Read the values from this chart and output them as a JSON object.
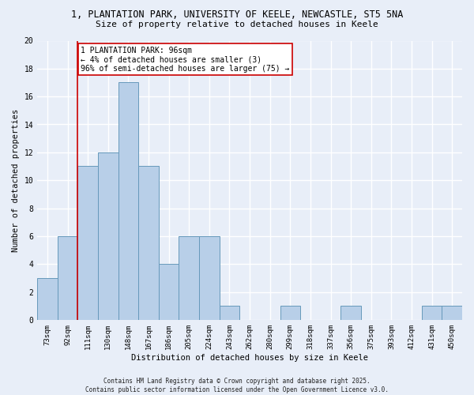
{
  "title1": "1, PLANTATION PARK, UNIVERSITY OF KEELE, NEWCASTLE, ST5 5NA",
  "title2": "Size of property relative to detached houses in Keele",
  "xlabel": "Distribution of detached houses by size in Keele",
  "ylabel": "Number of detached properties",
  "categories": [
    "73sqm",
    "92sqm",
    "111sqm",
    "130sqm",
    "148sqm",
    "167sqm",
    "186sqm",
    "205sqm",
    "224sqm",
    "243sqm",
    "262sqm",
    "280sqm",
    "299sqm",
    "318sqm",
    "337sqm",
    "356sqm",
    "375sqm",
    "393sqm",
    "412sqm",
    "431sqm",
    "450sqm"
  ],
  "values": [
    3,
    6,
    11,
    12,
    17,
    11,
    4,
    6,
    6,
    1,
    0,
    0,
    1,
    0,
    0,
    1,
    0,
    0,
    0,
    1,
    1
  ],
  "bar_color": "#b8cfe8",
  "bar_edge_color": "#6699bb",
  "vline_x_index": 1.5,
  "annotation_text": "1 PLANTATION PARK: 96sqm\n← 4% of detached houses are smaller (3)\n96% of semi-detached houses are larger (75) →",
  "annotation_box_color": "white",
  "annotation_box_edge_color": "#cc0000",
  "vline_color": "#cc0000",
  "ylim": [
    0,
    20
  ],
  "yticks": [
    0,
    2,
    4,
    6,
    8,
    10,
    12,
    14,
    16,
    18,
    20
  ],
  "footer_text": "Contains HM Land Registry data © Crown copyright and database right 2025.\nContains public sector information licensed under the Open Government Licence v3.0.",
  "bg_color": "#e8eef8",
  "grid_color": "white",
  "title1_fontsize": 8.5,
  "title2_fontsize": 8,
  "ylabel_fontsize": 7.5,
  "xlabel_fontsize": 7.5,
  "tick_fontsize": 6.5,
  "annotation_fontsize": 7,
  "footer_fontsize": 5.5
}
